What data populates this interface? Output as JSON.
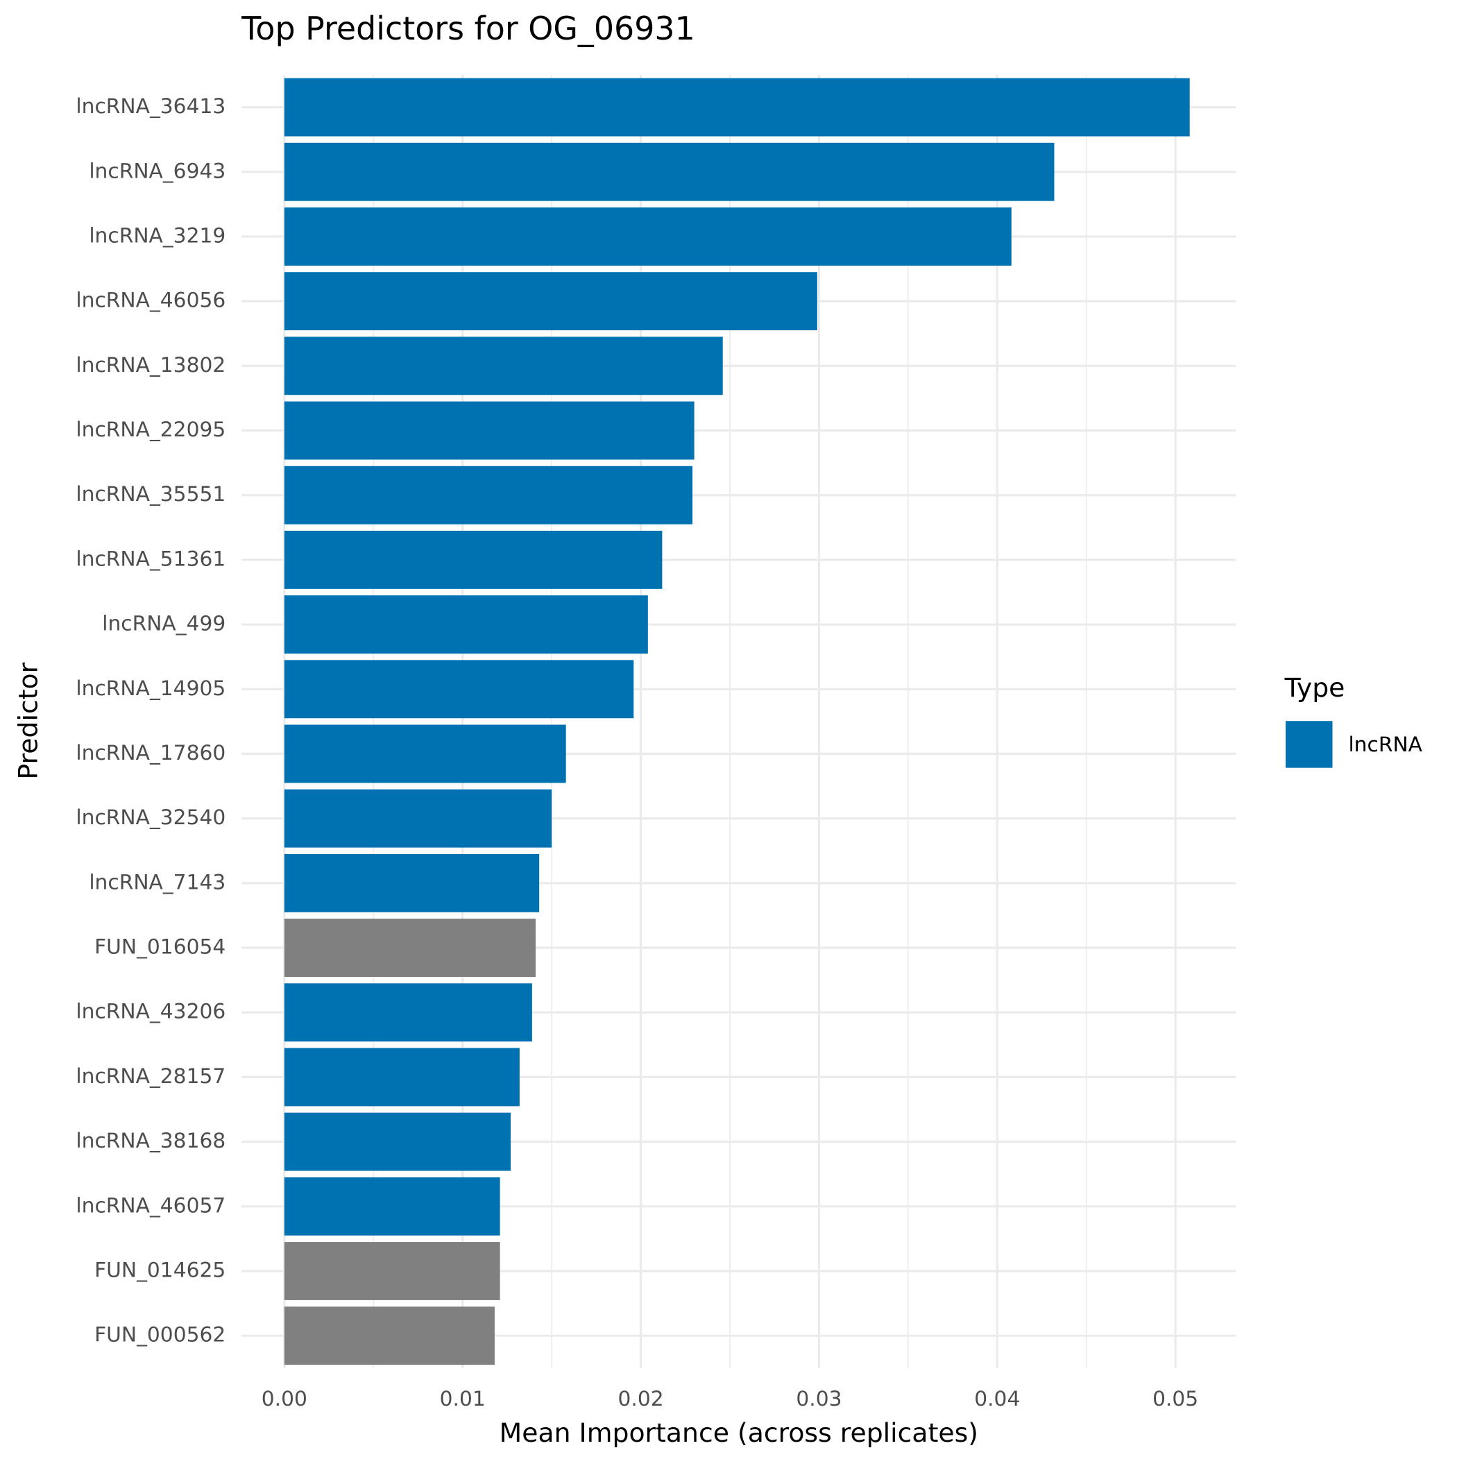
{
  "chart_data": {
    "type": "barh",
    "title": "Top Predictors for OG_06931",
    "x_label": "Mean Importance (across replicates)",
    "y_label": "Predictor",
    "categories": [
      "lncRNA_36413",
      "lncRNA_6943",
      "lncRNA_3219",
      "lncRNA_46056",
      "lncRNA_13802",
      "lncRNA_22095",
      "lncRNA_35551",
      "lncRNA_51361",
      "lncRNA_499",
      "lncRNA_14905",
      "lncRNA_17860",
      "lncRNA_32540",
      "lncRNA_7143",
      "FUN_016054",
      "lncRNA_43206",
      "lncRNA_28157",
      "lncRNA_38168",
      "lncRNA_46057",
      "FUN_014625",
      "FUN_000562"
    ],
    "values": [
      0.0508,
      0.0432,
      0.0408,
      0.0299,
      0.0246,
      0.023,
      0.0229,
      0.0212,
      0.0204,
      0.0196,
      0.0158,
      0.015,
      0.0143,
      0.0141,
      0.0139,
      0.0132,
      0.0127,
      0.0121,
      0.0121,
      0.0118
    ],
    "colors": [
      "#0072b2",
      "#0072b2",
      "#0072b2",
      "#0072b2",
      "#0072b2",
      "#0072b2",
      "#0072b2",
      "#0072b2",
      "#0072b2",
      "#0072b2",
      "#0072b2",
      "#0072b2",
      "#0072b2",
      "#808080",
      "#0072b2",
      "#0072b2",
      "#0072b2",
      "#0072b2",
      "#808080",
      "#808080"
    ],
    "xlim": [
      -0.0024,
      0.0534
    ],
    "xticks": [
      {
        "value": 0,
        "label": "0.00"
      },
      {
        "value": 0.01,
        "label": "0.01"
      },
      {
        "value": 0.02,
        "label": "0.02"
      },
      {
        "value": 0.03,
        "label": "0.03"
      },
      {
        "value": 0.04,
        "label": "0.04"
      },
      {
        "value": 0.05,
        "label": "0.05"
      }
    ],
    "xminorticks": [
      0.005,
      0.015,
      0.025,
      0.035,
      0.045
    ],
    "grid": true,
    "legend": {
      "title": "Type",
      "entries": [
        {
          "name": "lncRNA",
          "color": "#0072b2"
        }
      ],
      "position": "right"
    }
  }
}
